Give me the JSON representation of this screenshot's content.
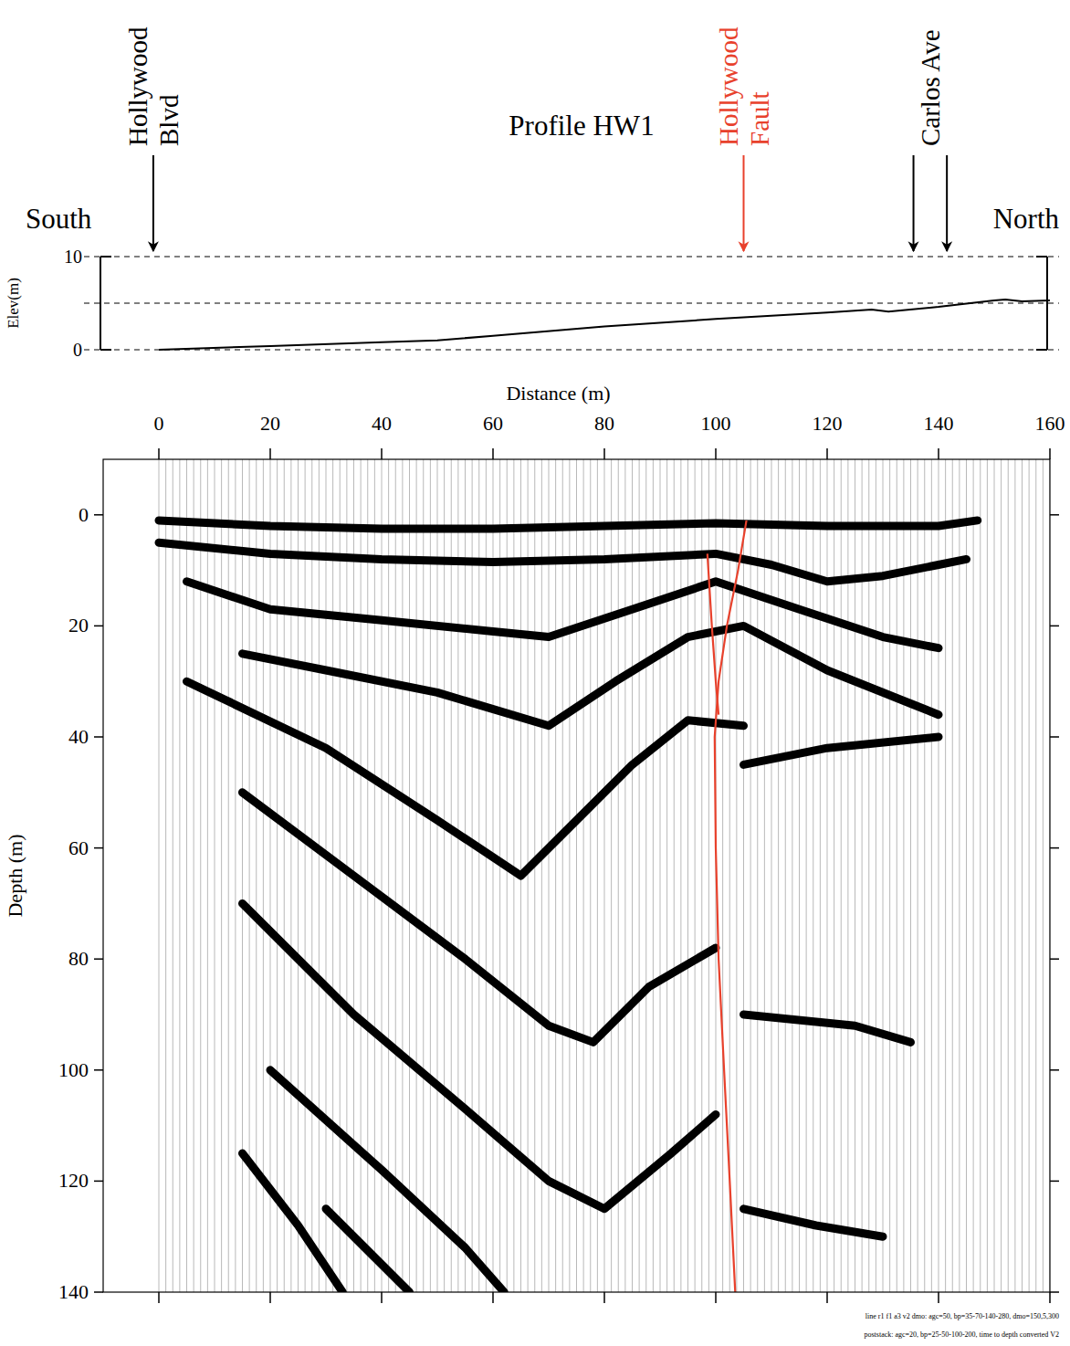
{
  "chart_data": {
    "type": "seismic_section",
    "title": "Profile HW1",
    "direction_labels": {
      "left": "South",
      "right": "North"
    },
    "elevation_panel": {
      "y_label": "Elev(m)",
      "ylim": [
        0,
        10
      ],
      "yticks": [
        0,
        10
      ],
      "grid_values": [
        0,
        5,
        10
      ],
      "x": [
        0,
        20,
        40,
        50,
        60,
        80,
        100,
        120,
        128,
        131,
        140,
        150,
        152,
        155,
        160
      ],
      "values": [
        0,
        0.4,
        0.8,
        1.0,
        1.5,
        2.5,
        3.3,
        4.0,
        4.3,
        4.1,
        4.6,
        5.3,
        5.4,
        5.2,
        5.3
      ]
    },
    "x_label": "Distance (m)",
    "xlim": [
      -10,
      160
    ],
    "xticks": [
      0,
      20,
      40,
      60,
      80,
      100,
      120,
      140,
      160
    ],
    "y_label": "Depth (m)",
    "ylim": [
      -10,
      140
    ],
    "yticks": [
      0,
      20,
      40,
      60,
      80,
      100,
      120,
      140
    ],
    "annotations": [
      {
        "lines": [
          "Hollywood",
          "Blvd"
        ],
        "x": [
          -1
        ],
        "color": "#000000"
      },
      {
        "lines": [
          "Hollywood",
          "Fault"
        ],
        "x": [
          105
        ],
        "color": "#e8412c"
      },
      {
        "lines": [
          "Carlos Ave"
        ],
        "x": [
          135.5,
          141.5
        ],
        "color": "#000000"
      }
    ],
    "fault": {
      "color": "#e8412c",
      "traces": [
        {
          "x": [
            105.5,
            104,
            102,
            100.5,
            99.8,
            100,
            100.5,
            101.5,
            102.5,
            103.5
          ],
          "y": [
            1,
            10,
            20,
            30,
            40,
            60,
            80,
            100,
            120,
            140
          ]
        },
        {
          "x": [
            98.5,
            99.3,
            100,
            100.5
          ],
          "y": [
            7,
            20,
            30,
            36
          ]
        }
      ]
    },
    "color": "#000000",
    "series": [
      {
        "x": [
          0,
          20,
          40,
          60,
          80,
          100,
          120,
          140,
          147
        ],
        "values": [
          1,
          2,
          2.5,
          2.5,
          2,
          1.5,
          2,
          2,
          1
        ]
      },
      {
        "x": [
          0,
          20,
          40,
          60,
          80,
          100,
          110,
          120,
          130,
          140,
          145
        ],
        "values": [
          5,
          7,
          8,
          8.5,
          8,
          7,
          9,
          12,
          11,
          9,
          8
        ]
      },
      {
        "x": [
          5,
          20,
          40,
          60,
          70,
          85,
          100,
          115,
          130,
          140
        ],
        "values": [
          12,
          17,
          19,
          21,
          22,
          17,
          12,
          17,
          22,
          24
        ]
      },
      {
        "x": [
          15,
          30,
          50,
          70,
          82,
          95,
          105,
          120,
          135,
          140
        ],
        "values": [
          25,
          28,
          32,
          38,
          30,
          22,
          20,
          28,
          34,
          36
        ]
      },
      {
        "x": [
          5,
          30,
          50,
          65,
          75,
          85,
          95,
          105
        ],
        "values": [
          30,
          42,
          55,
          65,
          55,
          45,
          37,
          38
        ]
      },
      {
        "x": [
          15,
          35,
          55,
          70,
          78,
          88,
          100
        ],
        "values": [
          50,
          65,
          80,
          92,
          95,
          85,
          78
        ]
      },
      {
        "x": [
          15,
          35,
          55,
          70,
          80,
          92,
          100
        ],
        "values": [
          70,
          90,
          107,
          120,
          125,
          115,
          108
        ]
      },
      {
        "x": [
          20,
          40,
          55,
          62
        ],
        "values": [
          100,
          118,
          132,
          140
        ]
      },
      {
        "x": [
          15,
          25,
          33
        ],
        "values": [
          115,
          128,
          140
        ]
      },
      {
        "x": [
          30,
          45
        ],
        "values": [
          125,
          140
        ]
      },
      {
        "x": [
          105,
          120,
          140
        ],
        "values": [
          45,
          42,
          40
        ]
      },
      {
        "x": [
          105,
          125,
          135
        ],
        "values": [
          90,
          92,
          95
        ]
      },
      {
        "x": [
          105,
          118,
          130
        ],
        "values": [
          125,
          128,
          130
        ]
      }
    ],
    "footnotes": [
      "line r1 f1 a3 v2 dmo: agc=50, bp=35-70-140-280, dmo=150,5,300",
      "poststack: agc=20, bp=25-50-100-200, time to depth converted V2"
    ]
  }
}
